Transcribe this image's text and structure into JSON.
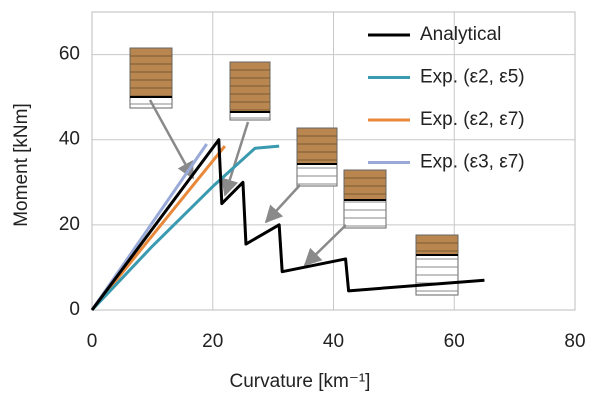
{
  "chart_data": {
    "type": "line",
    "x_label": "Curvature [km⁻¹]",
    "y_label": "Moment [kNm]",
    "xlim": [
      0,
      80
    ],
    "ylim": [
      0,
      70
    ],
    "xticks": [
      0,
      20,
      40,
      60,
      80
    ],
    "yticks": [
      0,
      20,
      40,
      60
    ],
    "grid": true,
    "legend": "top-right",
    "series": [
      {
        "name": "Analytical",
        "color": "#000000",
        "x": [
          0,
          21,
          21.5,
          25,
          25.5,
          31,
          31.5,
          42,
          42.5,
          65
        ],
        "values": [
          0,
          40,
          25,
          30,
          15.5,
          20,
          9,
          12,
          4.5,
          7
        ]
      },
      {
        "name": "Exp. (ε2, ε5)",
        "color": "#3a9ab0",
        "x": [
          0,
          10,
          20,
          27,
          31
        ],
        "values": [
          0,
          15,
          29,
          38,
          38.5
        ]
      },
      {
        "name": "Exp. (ε2, ε7)",
        "color": "#e8883a",
        "x": [
          0,
          22
        ],
        "values": [
          0,
          38.5
        ]
      },
      {
        "name": "Exp. (ε3, ε7)",
        "color": "#9aaad8",
        "x": [
          0,
          19
        ],
        "values": [
          0,
          39
        ]
      }
    ]
  }
}
